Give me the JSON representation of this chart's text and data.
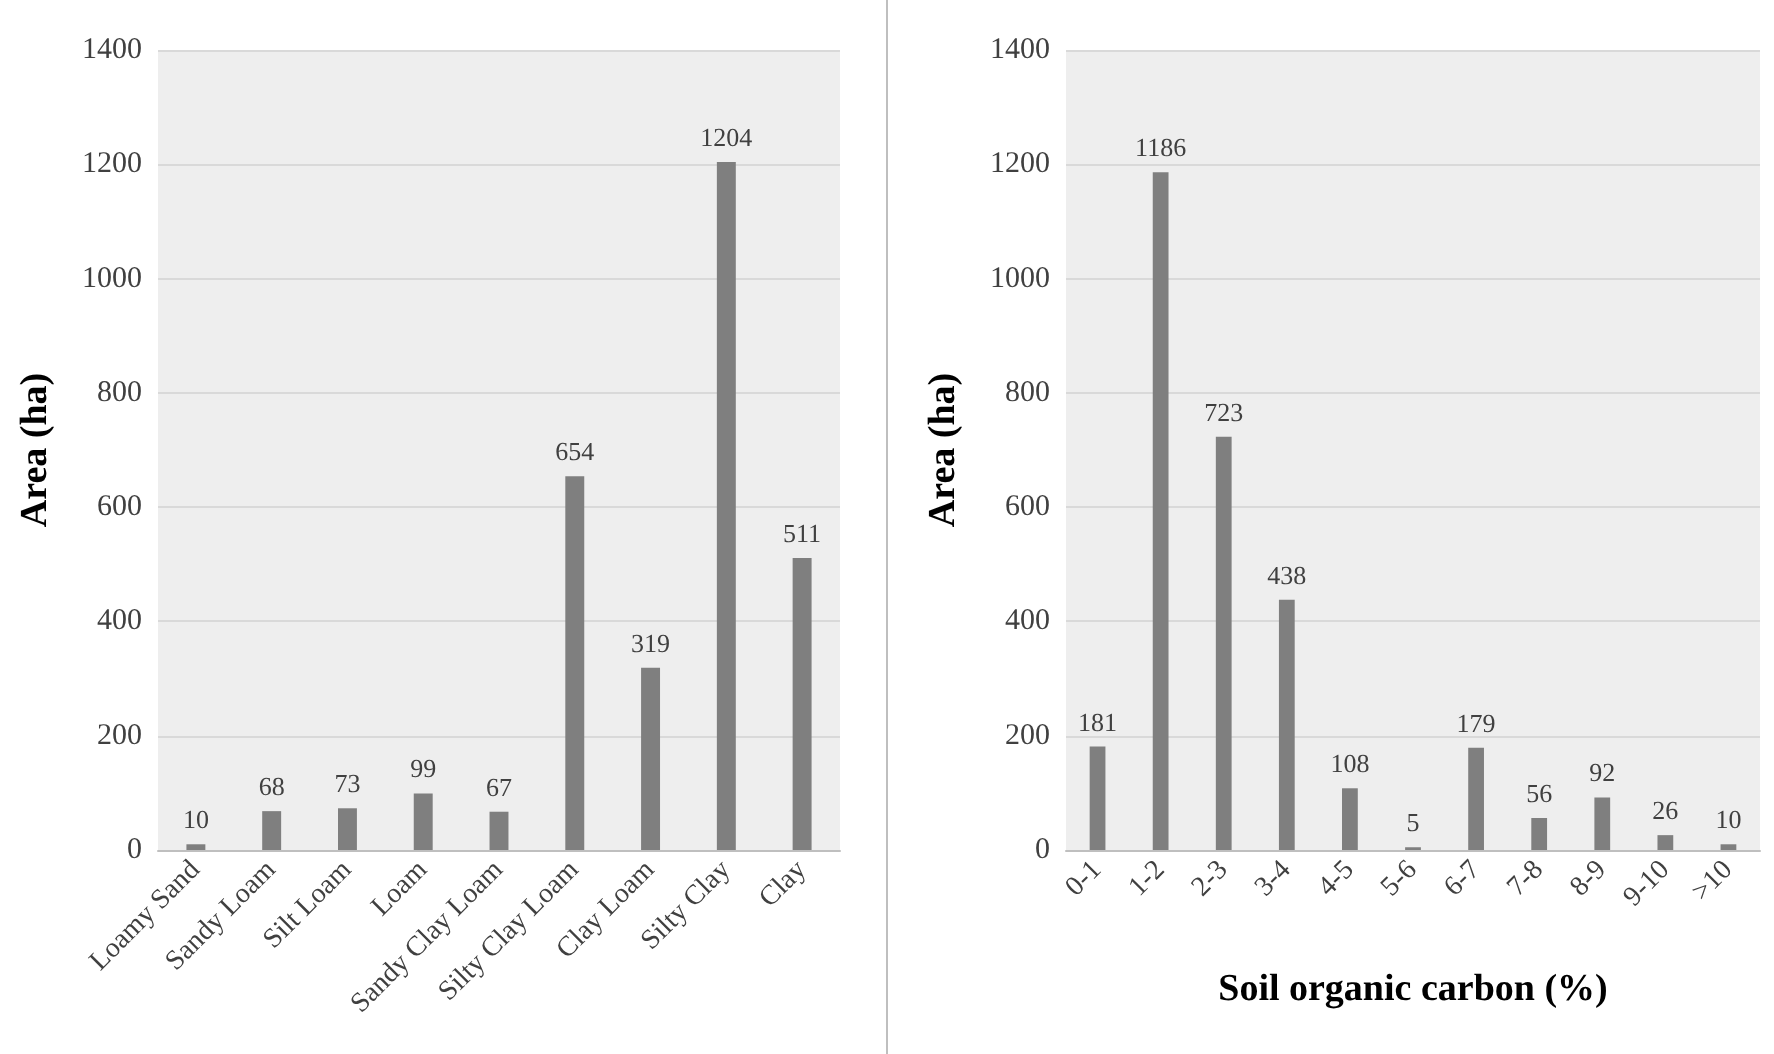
{
  "chart_data": [
    {
      "type": "bar",
      "ylabel": "Area (ha)",
      "categories": [
        "Loamy Sand",
        "Sandy Loam",
        "Silt Loam",
        "Loam",
        "Sandy Clay Loam",
        "Silty Clay Loam",
        "Clay Loam",
        "Silty Clay",
        "Clay"
      ],
      "values": [
        10,
        68,
        73,
        99,
        67,
        654,
        319,
        1204,
        511
      ],
      "color": "#7f7f7f",
      "ylim": [
        0,
        1400
      ],
      "yticks": [
        0,
        200,
        400,
        600,
        800,
        1000,
        1200,
        1400
      ],
      "grid": "y",
      "data_labels": true
    },
    {
      "type": "bar",
      "ylabel": "Area (ha)",
      "xlabel": "Soil organic carbon (%)",
      "categories": [
        "0-1",
        "1-2",
        "2-3",
        "3-4",
        "4-5",
        "5-6",
        "6-7",
        "7-8",
        "8-9",
        "9-10",
        ">10"
      ],
      "values": [
        181,
        1186,
        723,
        438,
        108,
        5,
        179,
        56,
        92,
        26,
        10
      ],
      "color": "#7f7f7f",
      "ylim": [
        0,
        1400
      ],
      "yticks": [
        0,
        200,
        400,
        600,
        800,
        1000,
        1200,
        1400
      ],
      "grid": "y",
      "data_labels": true
    }
  ]
}
